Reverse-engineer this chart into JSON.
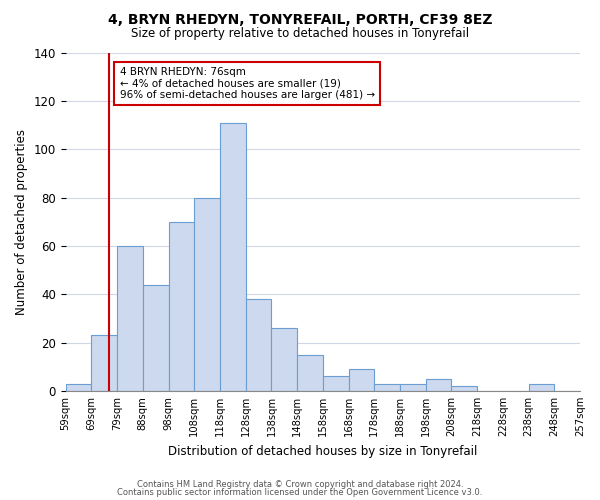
{
  "title": "4, BRYN RHEDYN, TONYREFAIL, PORTH, CF39 8EZ",
  "subtitle": "Size of property relative to detached houses in Tonyrefail",
  "xlabel": "Distribution of detached houses by size in Tonyrefail",
  "ylabel": "Number of detached properties",
  "bar_color": "#ccd9ee",
  "bar_edge_color": "#6b9fd4",
  "bin_labels": [
    "59sqm",
    "69sqm",
    "79sqm",
    "88sqm",
    "98sqm",
    "108sqm",
    "118sqm",
    "128sqm",
    "138sqm",
    "148sqm",
    "158sqm",
    "168sqm",
    "178sqm",
    "188sqm",
    "198sqm",
    "208sqm",
    "218sqm",
    "228sqm",
    "238sqm",
    "248sqm",
    "257sqm"
  ],
  "counts": [
    3,
    23,
    60,
    44,
    70,
    80,
    111,
    38,
    26,
    15,
    6,
    9,
    3,
    3,
    5,
    2,
    0,
    0,
    3,
    0
  ],
  "vline_bin": 1.7,
  "vline_color": "#cc0000",
  "annotation_text": "4 BRYN RHEDYN: 76sqm\n← 4% of detached houses are smaller (19)\n96% of semi-detached houses are larger (481) →",
  "annotation_box_color": "#ffffff",
  "annotation_box_edge": "#cc0000",
  "ylim": [
    0,
    140
  ],
  "yticks": [
    0,
    20,
    40,
    60,
    80,
    100,
    120,
    140
  ],
  "footer1": "Contains HM Land Registry data © Crown copyright and database right 2024.",
  "footer2": "Contains public sector information licensed under the Open Government Licence v3.0."
}
